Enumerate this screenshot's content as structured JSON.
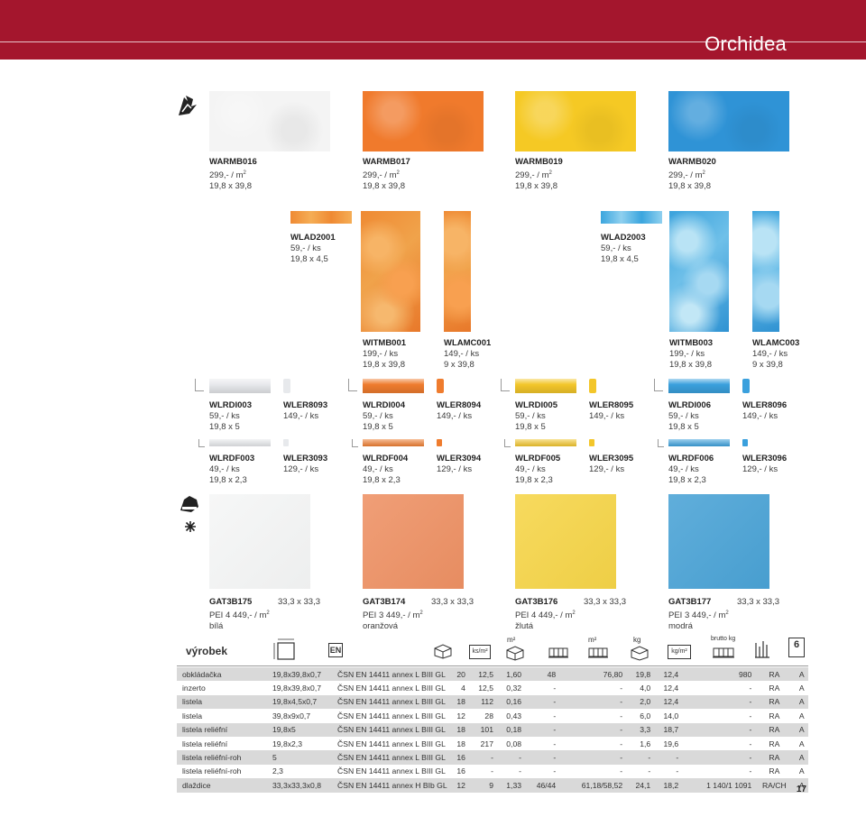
{
  "header": {
    "title": "Orchidea",
    "color": "#a4162d"
  },
  "row1": [
    {
      "code": "WARMB016",
      "price": "299,- / m",
      "size": "19,8 x 39,8",
      "color": "#f4f4f4"
    },
    {
      "code": "WARMB017",
      "price": "299,- / m",
      "size": "19,8 x 39,8",
      "color": "#f07a2c"
    },
    {
      "code": "WARMB019",
      "price": "299,- / m",
      "size": "19,8 x 39,8",
      "color": "#f5c924"
    },
    {
      "code": "WARMB020",
      "price": "299,- / m",
      "size": "19,8 x 39,8",
      "color": "#2f93d6"
    }
  ],
  "row2": [
    {
      "code": "WLAD2001",
      "price": "59,- / ks",
      "size": "19,8 x 4,5"
    },
    {
      "code": "WLAD2003",
      "price": "59,- / ks",
      "size": "19,8 x 4,5"
    }
  ],
  "row3": [
    {
      "code": "WITMB001",
      "price": "199,- / ks",
      "size": "19,8 x 39,8"
    },
    {
      "code": "WLAMC001",
      "price": "149,- / ks",
      "size": "9 x 39,8"
    },
    {
      "code": "WITMB003",
      "price": "199,- / ks",
      "size": "19,8 x 39,8"
    },
    {
      "code": "WLAMC003",
      "price": "149,- / ks",
      "size": "9 x 39,8"
    }
  ],
  "row4": [
    {
      "code": "WLRDI003",
      "price": "59,- / ks",
      "size": "19,8 x 5",
      "color": "#e7e9ec"
    },
    {
      "code": "WLER8093",
      "price": "149,- / ks"
    },
    {
      "code": "WLRDI004",
      "price": "59,- / ks",
      "size": "19,8 x 5",
      "color": "#ef7c2e"
    },
    {
      "code": "WLER8094",
      "price": "149,- / ks"
    },
    {
      "code": "WLRDI005",
      "price": "59,- / ks",
      "size": "19,8 x 5",
      "color": "#f3c62a"
    },
    {
      "code": "WLER8095",
      "price": "149,- / ks"
    },
    {
      "code": "WLRDI006",
      "price": "59,- / ks",
      "size": "19,8 x 5",
      "color": "#3aa0dd"
    },
    {
      "code": "WLER8096",
      "price": "149,- / ks"
    }
  ],
  "row5": [
    {
      "code": "WLRDF003",
      "price": "49,- / ks",
      "size": "19,8 x 2,3",
      "color": "#e7e9ec"
    },
    {
      "code": "WLER3093",
      "price": "129,- / ks"
    },
    {
      "code": "WLRDF004",
      "price": "49,- / ks",
      "size": "19,8 x 2,3",
      "color": "#ef7c2e"
    },
    {
      "code": "WLER3094",
      "price": "129,- / ks"
    },
    {
      "code": "WLRDF005",
      "price": "49,- / ks",
      "size": "19,8 x 2,3",
      "color": "#f3c62a"
    },
    {
      "code": "WLER3095",
      "price": "129,- / ks"
    },
    {
      "code": "WLRDF006",
      "price": "49,- / ks",
      "size": "19,8 x 2,3",
      "color": "#3aa0dd"
    },
    {
      "code": "WLER3096",
      "price": "129,- / ks"
    }
  ],
  "row6": [
    {
      "code": "GAT3B175",
      "size": "33,3 x 33,3",
      "pei": "PEI 4   449,- / m",
      "colorname": "bílá",
      "color": "#f5f6f6"
    },
    {
      "code": "GAT3B174",
      "size": "33,3 x 33,3",
      "pei": "PEI 3   449,- / m",
      "colorname": "oranžová",
      "color": "#ee9164"
    },
    {
      "code": "GAT3B176",
      "size": "33,3 x 33,3",
      "pei": "PEI 4   449,- / m",
      "colorname": "žlutá",
      "color": "#f6d548"
    },
    {
      "code": "GAT3B177",
      "size": "33,3 x 33,3",
      "pei": "PEI 3   449,- / m",
      "colorname": "modrá",
      "color": "#4aa3d6"
    }
  ],
  "table_header": {
    "vyrobek": "výrobek",
    "en": "EN",
    "ks_m2": "ks/m²",
    "m2": "m²",
    "m2b": "m²",
    "kg": "kg",
    "kg_m2": "kg/m²",
    "brutto": "brutto kg",
    "six": "6"
  },
  "table": [
    [
      "obkládačka",
      "19,8x39,8x0,7",
      "ČSN EN 14411 annex L BIII GL",
      "20",
      "12,5",
      "1,60",
      "48",
      "76,80",
      "19,8",
      "12,4",
      "980",
      "RA",
      "A"
    ],
    [
      "inzerto",
      "19,8x39,8x0,7",
      "ČSN EN 14411 annex L BIII GL",
      "4",
      "12,5",
      "0,32",
      "-",
      "-",
      "4,0",
      "12,4",
      "-",
      "RA",
      "A"
    ],
    [
      "listela",
      "19,8x4,5x0,7",
      "ČSN EN 14411 annex L BIII GL",
      "18",
      "112",
      "0,16",
      "-",
      "-",
      "2,0",
      "12,4",
      "-",
      "RA",
      "A"
    ],
    [
      "listela",
      "39,8x9x0,7",
      "ČSN EN 14411 annex L BIII GL",
      "12",
      "28",
      "0,43",
      "-",
      "-",
      "6,0",
      "14,0",
      "-",
      "RA",
      "A"
    ],
    [
      "listela reliéfní",
      "19,8x5",
      "ČSN EN 14411 annex L BIII GL",
      "18",
      "101",
      "0,18",
      "-",
      "-",
      "3,3",
      "18,7",
      "-",
      "RA",
      "A"
    ],
    [
      "listela reliéfní",
      "19,8x2,3",
      "ČSN EN 14411 annex L BIII GL",
      "18",
      "217",
      "0,08",
      "-",
      "-",
      "1,6",
      "19,6",
      "-",
      "RA",
      "A"
    ],
    [
      "listela reliéfní-roh",
      "5",
      "ČSN EN 14411 annex L BIII GL",
      "16",
      "-",
      "-",
      "-",
      "-",
      "-",
      "-",
      "-",
      "RA",
      "A"
    ],
    [
      "listela reliéfní-roh",
      "2,3",
      "ČSN EN 14411 annex L BIII GL",
      "16",
      "-",
      "-",
      "-",
      "-",
      "-",
      "-",
      "-",
      "RA",
      "A"
    ],
    [
      "dlaždice",
      "33,3x33,3x0,8",
      "ČSN EN 14411 annex H BIb GL",
      "12",
      "9",
      "1,33",
      "46/44",
      "61,18/58,52",
      "24,1",
      "18,2",
      "1 140/1 1091",
      "RA/CH",
      "A"
    ]
  ],
  "page_number": "17"
}
